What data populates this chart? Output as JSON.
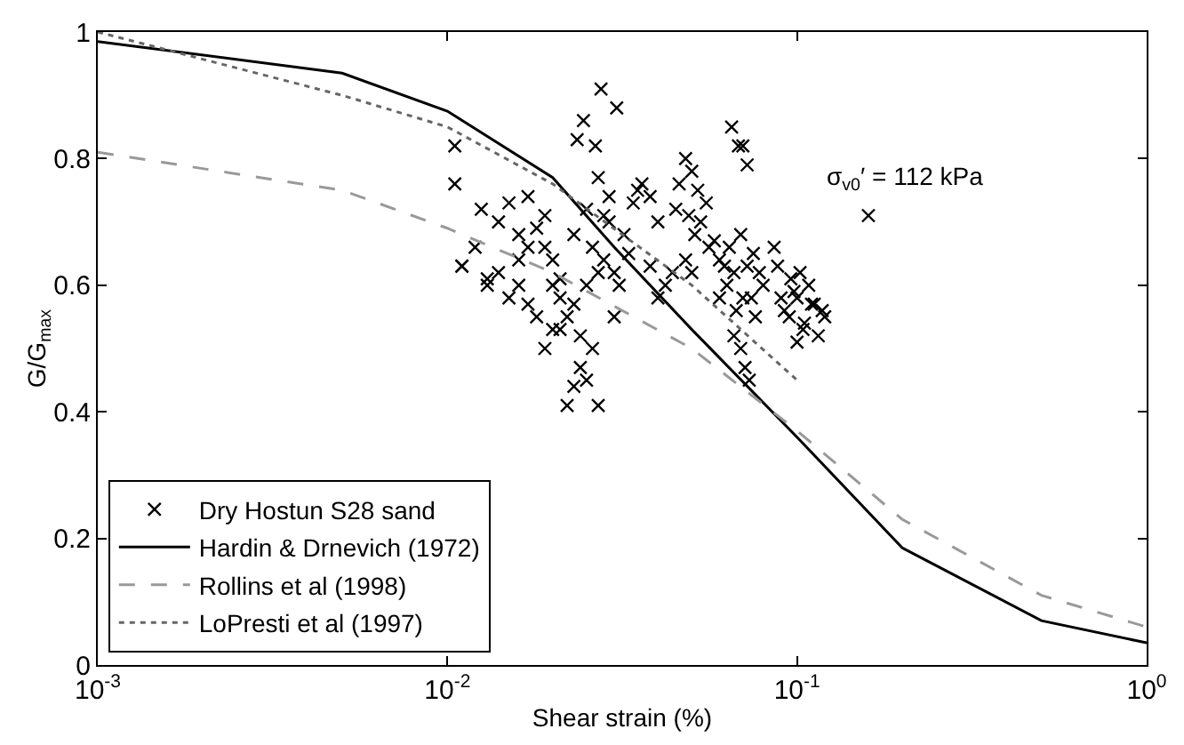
{
  "chart_data": {
    "type": "scatter",
    "xlabel": "Shear strain (%)",
    "ylabel": "G/G$_{max}$",
    "log": "x",
    "xlim": [
      0.001,
      1
    ],
    "xticks": [
      {
        "value": 0.001,
        "label": "10$^{-3}$"
      },
      {
        "value": 0.01,
        "label": "10$^{-2}$"
      },
      {
        "value": 0.1,
        "label": "10$^{-1}$"
      },
      {
        "value": 1,
        "label": "10$^{0}$"
      }
    ],
    "ylim": [
      0,
      1
    ],
    "yticks": [
      0,
      0.2,
      0.4,
      0.6,
      0.8,
      1
    ],
    "legend": "bottom left",
    "annotations": [
      "σ$_{v0}$′ = 112 kPa"
    ],
    "series": [
      {
        "name": "Dry Hostun S28 sand",
        "marker": "cross",
        "color": "#000000",
        "x": [
          0.0275,
          0.0245,
          0.0305,
          0.0235,
          0.0265,
          0.035,
          0.045,
          0.065,
          0.068,
          0.07,
          0.072,
          0.0105,
          0.0105,
          0.011,
          0.013,
          0.015,
          0.016,
          0.017,
          0.018,
          0.014,
          0.0125,
          0.015,
          0.016,
          0.018,
          0.019,
          0.02,
          0.017,
          0.019,
          0.021,
          0.016,
          0.014,
          0.013,
          0.011,
          0.012,
          0.017,
          0.019,
          0.02,
          0.022,
          0.024,
          0.026,
          0.023,
          0.025,
          0.027,
          0.024,
          0.022,
          0.021,
          0.023,
          0.026,
          0.028,
          0.03,
          0.025,
          0.027,
          0.029,
          0.02,
          0.021,
          0.023,
          0.025,
          0.027,
          0.03,
          0.031,
          0.033,
          0.032,
          0.029,
          0.028,
          0.034,
          0.036,
          0.038,
          0.04,
          0.042,
          0.044,
          0.038,
          0.04,
          0.046,
          0.048,
          0.05,
          0.052,
          0.049,
          0.051,
          0.053,
          0.055,
          0.048,
          0.05,
          0.056,
          0.058,
          0.06,
          0.062,
          0.064,
          0.066,
          0.06,
          0.063,
          0.067,
          0.07,
          0.072,
          0.075,
          0.078,
          0.074,
          0.08,
          0.066,
          0.069,
          0.071,
          0.073,
          0.076,
          0.069,
          0.086,
          0.088,
          0.09,
          0.092,
          0.095,
          0.1,
          0.105,
          0.11,
          0.115,
          0.12,
          0.098,
          0.102,
          0.108,
          0.112,
          0.118,
          0.104,
          0.1,
          0.096,
          0.16
        ],
        "values": [
          0.91,
          0.86,
          0.88,
          0.83,
          0.82,
          0.75,
          0.72,
          0.85,
          0.82,
          0.82,
          0.79,
          0.82,
          0.76,
          0.63,
          0.6,
          0.58,
          0.6,
          0.57,
          0.55,
          0.7,
          0.72,
          0.73,
          0.68,
          0.69,
          0.66,
          0.64,
          0.74,
          0.71,
          0.61,
          0.64,
          0.62,
          0.61,
          0.63,
          0.66,
          0.66,
          0.5,
          0.53,
          0.55,
          0.52,
          0.5,
          0.44,
          0.45,
          0.41,
          0.47,
          0.41,
          0.53,
          0.68,
          0.66,
          0.64,
          0.62,
          0.72,
          0.77,
          0.74,
          0.6,
          0.58,
          0.57,
          0.6,
          0.62,
          0.55,
          0.6,
          0.65,
          0.68,
          0.7,
          0.71,
          0.73,
          0.76,
          0.74,
          0.7,
          0.6,
          0.62,
          0.63,
          0.58,
          0.76,
          0.8,
          0.78,
          0.75,
          0.71,
          0.68,
          0.7,
          0.73,
          0.64,
          0.62,
          0.66,
          0.67,
          0.64,
          0.63,
          0.66,
          0.62,
          0.58,
          0.6,
          0.56,
          0.58,
          0.63,
          0.65,
          0.62,
          0.58,
          0.6,
          0.52,
          0.5,
          0.47,
          0.45,
          0.55,
          0.68,
          0.66,
          0.63,
          0.58,
          0.56,
          0.55,
          0.58,
          0.54,
          0.57,
          0.52,
          0.55,
          0.59,
          0.62,
          0.6,
          0.57,
          0.56,
          0.53,
          0.51,
          0.61,
          0.71
        ]
      },
      {
        "name": "Hardin & Drnevich (1972)",
        "type": "line",
        "line_style": "solid",
        "color": "#000000",
        "x": [
          0.001,
          0.005,
          0.01,
          0.02,
          0.03,
          0.05,
          0.1,
          0.2,
          0.5,
          1
        ],
        "values": [
          0.985,
          0.935,
          0.875,
          0.77,
          0.66,
          0.53,
          0.36,
          0.185,
          0.07,
          0.035
        ]
      },
      {
        "name": "Rollins et al (1998)",
        "type": "line",
        "line_style": "dashed",
        "color": "#999999",
        "x": [
          0.001,
          0.005,
          0.01,
          0.02,
          0.05,
          0.1,
          0.2,
          0.5,
          1
        ],
        "values": [
          0.81,
          0.75,
          0.69,
          0.62,
          0.5,
          0.37,
          0.23,
          0.11,
          0.06
        ]
      },
      {
        "name": "LoPresti et al (1997)",
        "type": "line",
        "line_style": "dotted",
        "color": "#666666",
        "x": [
          0.001,
          0.005,
          0.01,
          0.02,
          0.05,
          0.1
        ],
        "values": [
          1.0,
          0.9,
          0.85,
          0.76,
          0.6,
          0.45
        ]
      }
    ]
  }
}
